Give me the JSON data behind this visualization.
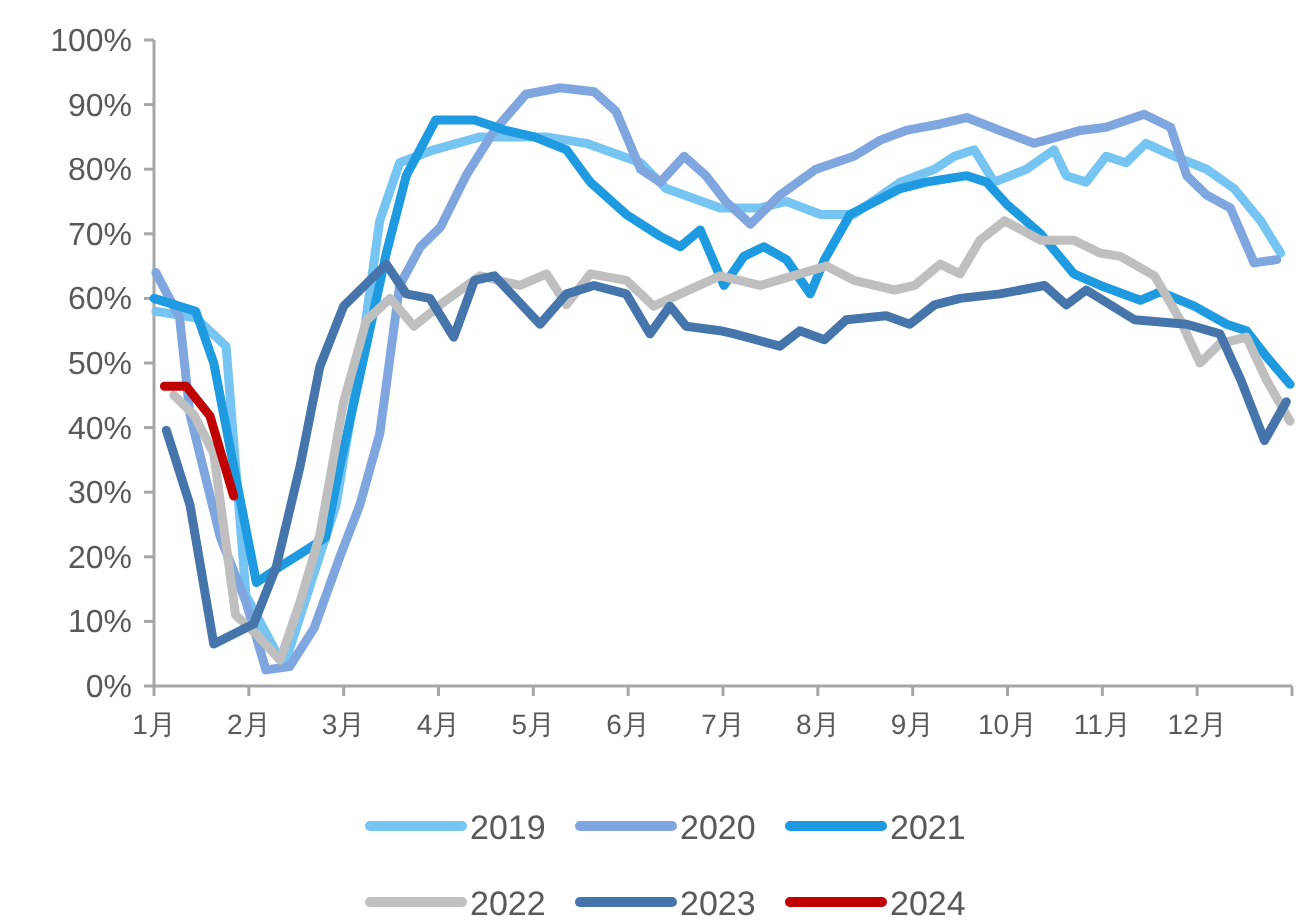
{
  "chart_data": {
    "type": "line",
    "legend": "bottom",
    "xlim": [
      1,
      13
    ],
    "xticks": [
      {
        "value": 1,
        "label": "1月"
      },
      {
        "value": 2,
        "label": "2月"
      },
      {
        "value": 3,
        "label": "3月"
      },
      {
        "value": 4,
        "label": "4月"
      },
      {
        "value": 5,
        "label": "5月"
      },
      {
        "value": 6,
        "label": "6月"
      },
      {
        "value": 7,
        "label": "7月"
      },
      {
        "value": 8,
        "label": "8月"
      },
      {
        "value": 9,
        "label": "9月"
      },
      {
        "value": 10,
        "label": "10月"
      },
      {
        "value": 11,
        "label": "11月"
      },
      {
        "value": 12,
        "label": "12月"
      },
      {
        "value": 13,
        "label": null
      }
    ],
    "ylim": [
      0,
      100
    ],
    "yticks": [
      {
        "value": 0,
        "label": "0%"
      },
      {
        "value": 10,
        "label": "10%"
      },
      {
        "value": 20,
        "label": "20%"
      },
      {
        "value": 30,
        "label": "30%"
      },
      {
        "value": 40,
        "label": "40%"
      },
      {
        "value": 50,
        "label": "50%"
      },
      {
        "value": 60,
        "label": "60%"
      },
      {
        "value": 70,
        "label": "70%"
      },
      {
        "value": 80,
        "label": "80%"
      },
      {
        "value": 90,
        "label": "90%"
      },
      {
        "value": 100,
        "label": "100%"
      }
    ],
    "series": [
      {
        "name": "2019",
        "color": "#76c4f2",
        "x": [
          1.02,
          1.44,
          1.76,
          1.97,
          2.37,
          2.92,
          3.17,
          3.38,
          3.59,
          3.95,
          4.44,
          5.14,
          5.56,
          6.13,
          6.4,
          6.97,
          7.39,
          7.67,
          8.03,
          8.38,
          8.87,
          9.23,
          9.44,
          9.65,
          9.86,
          10.2,
          10.49,
          10.62,
          10.83,
          11.04,
          11.25,
          11.46,
          11.76,
          12.1,
          12.39,
          12.67,
          12.88
        ],
        "values": [
          58,
          57,
          52.6,
          14,
          3,
          28,
          50,
          72,
          81,
          83,
          85,
          85,
          84,
          81,
          77,
          74,
          74,
          75,
          73,
          73,
          78,
          80,
          82,
          83,
          78,
          80,
          83,
          79,
          78,
          82,
          81,
          84,
          82,
          80,
          77,
          72,
          67
        ]
      },
      {
        "name": "2020",
        "color": "#7fa6de",
        "x": [
          1.02,
          1.27,
          1.38,
          1.7,
          1.97,
          2.18,
          2.43,
          2.69,
          2.96,
          3.17,
          3.38,
          3.59,
          3.81,
          4.02,
          4.29,
          4.59,
          4.92,
          5.28,
          5.64,
          5.87,
          6.13,
          6.34,
          6.59,
          6.82,
          7.03,
          7.29,
          7.6,
          7.98,
          8.38,
          8.66,
          8.93,
          9.29,
          9.57,
          9.92,
          10.28,
          10.77,
          11.04,
          11.44,
          11.72,
          11.89,
          12.1,
          12.35,
          12.6,
          12.84
        ],
        "values": [
          64,
          57,
          42,
          23,
          13,
          2.5,
          3,
          9,
          20,
          28,
          39,
          62,
          68,
          71,
          79,
          86,
          91.6,
          92.6,
          92,
          89,
          80,
          78,
          82,
          79,
          75,
          71.5,
          76,
          80,
          82,
          84.5,
          86,
          87,
          88,
          86,
          84,
          86,
          86.5,
          88.5,
          86.5,
          79,
          76,
          74,
          65.5,
          66
        ]
      },
      {
        "name": "2021",
        "color": "#1e9ae0",
        "x": [
          1.0,
          1.44,
          1.63,
          1.84,
          2.08,
          2.33,
          2.6,
          2.81,
          2.96,
          3.17,
          3.45,
          3.66,
          3.97,
          4.38,
          4.71,
          5.01,
          5.35,
          5.6,
          5.98,
          6.34,
          6.55,
          6.76,
          7.01,
          7.22,
          7.43,
          7.67,
          7.92,
          8.07,
          8.34,
          8.87,
          9.14,
          9.57,
          9.78,
          9.99,
          10.35,
          10.7,
          10.98,
          11.4,
          11.61,
          11.97,
          12.31,
          12.52,
          12.73,
          12.98
        ],
        "values": [
          60,
          58,
          50,
          34,
          16,
          18.5,
          21,
          23,
          34,
          48,
          67,
          79,
          87.6,
          87.6,
          86,
          85,
          83,
          78,
          73,
          69.6,
          68,
          70.6,
          62,
          66.5,
          68,
          66,
          60.7,
          66,
          73,
          77,
          78,
          79,
          78,
          74.6,
          70,
          63.8,
          62,
          59.7,
          61,
          58.8,
          56,
          55,
          51,
          46.7
        ]
      },
      {
        "name": "2022",
        "color": "#bfbfbf",
        "x": [
          1.21,
          1.42,
          1.63,
          1.86,
          2.08,
          2.33,
          2.54,
          2.75,
          3.0,
          3.24,
          3.49,
          3.74,
          4.08,
          4.44,
          4.86,
          5.14,
          5.35,
          5.6,
          5.98,
          6.27,
          6.55,
          6.97,
          7.39,
          8.09,
          8.38,
          8.81,
          9.02,
          9.29,
          9.5,
          9.71,
          9.97,
          10.35,
          10.7,
          10.98,
          11.19,
          11.55,
          11.82,
          12.03,
          12.24,
          12.52,
          12.73,
          12.98
        ],
        "values": [
          45,
          42,
          36,
          11,
          8,
          4,
          13,
          23.5,
          44,
          56.6,
          60,
          55.7,
          59.7,
          63.5,
          62,
          63.8,
          59,
          63.8,
          62.8,
          58.8,
          60.7,
          63.5,
          62,
          65,
          62.8,
          61.3,
          62,
          65.3,
          63.8,
          69,
          72,
          69,
          69,
          67,
          66.5,
          63.5,
          56.7,
          50,
          53,
          54,
          47.4,
          41
        ]
      },
      {
        "name": "2023",
        "color": "#4575ab",
        "x": [
          1.13,
          1.38,
          1.63,
          2.05,
          2.29,
          2.54,
          2.75,
          3.0,
          3.45,
          3.66,
          3.91,
          4.16,
          4.38,
          4.59,
          5.07,
          5.35,
          5.64,
          5.98,
          6.23,
          6.44,
          6.61,
          6.97,
          7.12,
          7.6,
          7.81,
          8.07,
          8.3,
          8.72,
          8.97,
          9.23,
          9.5,
          9.92,
          10.39,
          10.62,
          10.83,
          11.34,
          11.89,
          12.24,
          12.46,
          12.71,
          12.94
        ],
        "values": [
          39.6,
          28,
          6.5,
          9.6,
          18.5,
          34,
          49.5,
          58.8,
          65.3,
          60.7,
          60,
          54,
          62.8,
          63.5,
          56,
          60.7,
          62,
          60.7,
          54.5,
          58.8,
          55.7,
          55,
          54.5,
          52.6,
          55,
          53.6,
          56.7,
          57.3,
          56,
          59,
          60,
          60.7,
          62,
          59,
          61.3,
          56.7,
          56,
          54.5,
          47.4,
          38,
          44
        ]
      },
      {
        "name": "2024",
        "color": "#c00000",
        "x": [
          1.11,
          1.34,
          1.59,
          1.84
        ],
        "values": [
          46.4,
          46.4,
          41.8,
          29.4
        ]
      }
    ]
  }
}
